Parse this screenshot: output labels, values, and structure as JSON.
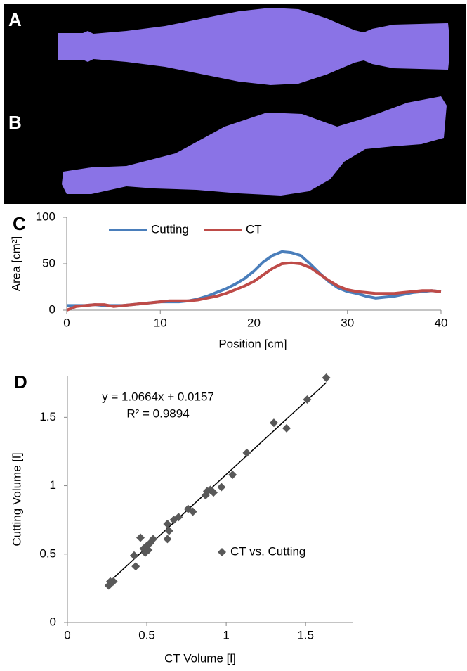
{
  "panel_labels": [
    "A",
    "B"
  ],
  "chart_data": [
    {
      "type": "line",
      "panel_label": "C",
      "x": [
        0,
        1,
        2,
        3,
        4,
        5,
        6,
        7,
        8,
        9,
        10,
        11,
        12,
        13,
        14,
        15,
        16,
        17,
        18,
        19,
        20,
        21,
        22,
        23,
        24,
        25,
        26,
        27,
        28,
        29,
        30,
        31,
        32,
        33,
        34,
        35,
        36,
        37,
        38,
        39,
        40
      ],
      "xlim": [
        0,
        40
      ],
      "xticks": [
        0,
        10,
        20,
        30,
        40
      ],
      "ylim": [
        0,
        100
      ],
      "yticks": [
        0,
        50,
        100
      ],
      "x_label": "Position [cm]",
      "y_label": "Area [cm²]",
      "series": [
        {
          "name": "Cutting",
          "color": "#4a7ebb",
          "values": [
            5,
            5,
            5,
            6,
            5,
            5,
            5,
            6,
            7,
            8,
            9,
            9,
            9,
            10,
            12,
            15,
            19,
            23,
            28,
            34,
            42,
            52,
            59,
            63,
            62,
            59,
            50,
            40,
            31,
            24,
            20,
            18,
            15,
            13,
            14,
            15,
            17,
            19,
            20,
            21,
            20
          ]
        },
        {
          "name": "CT",
          "color": "#be4b48",
          "values": [
            0,
            4,
            5,
            6,
            6,
            4,
            5,
            6,
            7,
            8,
            9,
            10,
            10,
            10,
            11,
            13,
            15,
            18,
            22,
            26,
            31,
            38,
            45,
            50,
            51,
            50,
            46,
            39,
            32,
            26,
            22,
            20,
            19,
            18,
            18,
            18,
            19,
            20,
            21,
            21,
            20
          ]
        }
      ]
    },
    {
      "type": "scatter",
      "panel_label": "D",
      "xlim": [
        0,
        1.8
      ],
      "xticks": [
        0,
        0.5,
        1,
        1.5
      ],
      "ylim": [
        0,
        1.8
      ],
      "yticks": [
        0,
        0.5,
        1,
        1.5
      ],
      "x_label": "CT Volume [l]",
      "y_label": "Cutting Volume [l]",
      "series": [
        {
          "name": "CT vs. Cutting",
          "color": "#595959",
          "x": [
            0.26,
            0.27,
            0.29,
            0.27,
            0.42,
            0.43,
            0.46,
            0.48,
            0.49,
            0.5,
            0.51,
            0.52,
            0.54,
            0.63,
            0.63,
            0.64,
            0.67,
            0.7,
            0.76,
            0.79,
            0.87,
            0.88,
            0.9,
            0.92,
            0.97,
            1.04,
            1.13,
            1.3,
            1.38,
            1.51,
            1.63
          ],
          "values": [
            0.27,
            0.3,
            0.3,
            0.28,
            0.49,
            0.41,
            0.62,
            0.54,
            0.51,
            0.56,
            0.53,
            0.58,
            0.61,
            0.61,
            0.72,
            0.67,
            0.75,
            0.77,
            0.83,
            0.81,
            0.93,
            0.96,
            0.97,
            0.95,
            0.99,
            1.08,
            1.24,
            1.46,
            1.42,
            1.63,
            1.79
          ]
        }
      ],
      "trendline": {
        "slope": 1.0664,
        "intercept": 0.0157,
        "x_range": [
          0.26,
          1.63
        ]
      },
      "annotations": [
        "y = 1.0664x + 0.0157",
        "R² = 0.9894"
      ]
    }
  ]
}
